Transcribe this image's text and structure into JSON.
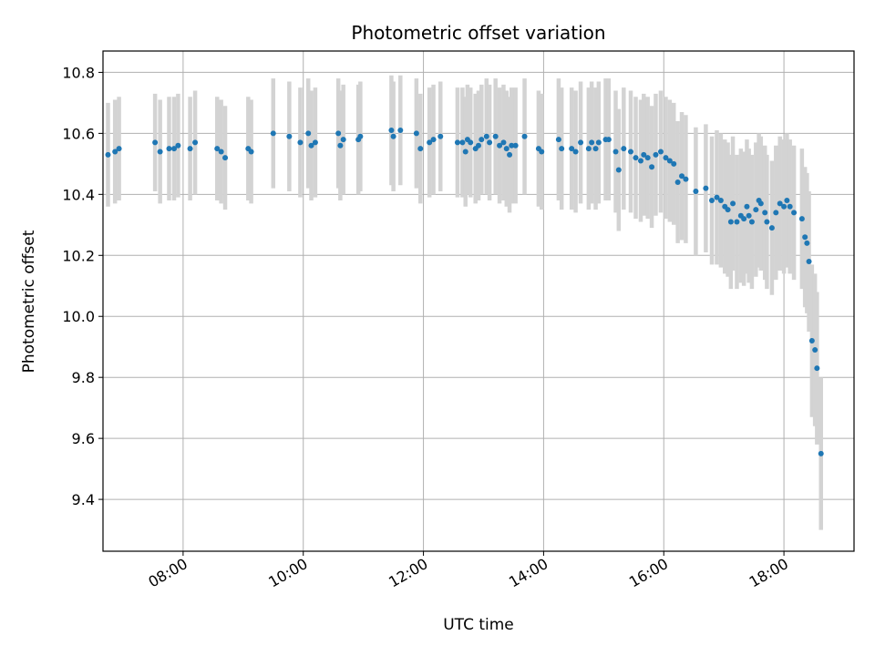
{
  "chart_data": {
    "type": "scatter",
    "title": "Photometric offset variation",
    "xlabel": "UTC time",
    "ylabel": "Photometric offset",
    "grid": true,
    "xlim": [
      "06:40",
      "19:10"
    ],
    "ylim": [
      9.23,
      10.87
    ],
    "x_ticks": [
      "08:00",
      "10:00",
      "12:00",
      "14:00",
      "16:00",
      "18:00"
    ],
    "y_ticks": [
      9.4,
      9.6,
      9.8,
      10.0,
      10.2,
      10.4,
      10.6,
      10.8
    ],
    "y_tick_labels": [
      "9.4",
      "9.6",
      "9.8",
      "10.0",
      "10.2",
      "10.4",
      "10.6",
      "10.8"
    ],
    "colors": {
      "points": "#1f77b4",
      "errorbars": "#d3d3d3",
      "grid": "#b0b0b0"
    },
    "series": [
      {
        "x": [
          "06:45",
          "06:52",
          "06:56",
          "07:32",
          "07:37",
          "07:46",
          "07:51",
          "07:55",
          "08:07",
          "08:12",
          "08:34",
          "08:38",
          "08:42",
          "09:05",
          "09:08",
          "09:30",
          "09:46",
          "09:57",
          "10:05",
          "10:08",
          "10:12",
          "10:35",
          "10:37",
          "10:40",
          "10:55",
          "10:57",
          "11:28",
          "11:30",
          "11:37",
          "11:53",
          "11:57",
          "12:06",
          "12:10",
          "12:17",
          "12:34",
          "12:39",
          "12:42",
          "12:44",
          "12:47",
          "12:52",
          "12:55",
          "12:58",
          "13:03",
          "13:06",
          "13:12",
          "13:16",
          "13:20",
          "13:23",
          "13:26",
          "13:28",
          "13:32",
          "13:41",
          "13:55",
          "13:58",
          "14:15",
          "14:18",
          "14:28",
          "14:32",
          "14:37",
          "14:45",
          "14:48",
          "14:52",
          "14:55",
          "15:02",
          "15:05",
          "15:12",
          "15:15",
          "15:20",
          "15:27",
          "15:32",
          "15:37",
          "15:40",
          "15:44",
          "15:48",
          "15:52",
          "15:57",
          "16:02",
          "16:06",
          "16:10",
          "16:14",
          "16:18",
          "16:22",
          "16:32",
          "16:42",
          "16:48",
          "16:53",
          "16:57",
          "17:01",
          "17:04",
          "17:07",
          "17:09",
          "17:13",
          "17:17",
          "17:20",
          "17:23",
          "17:25",
          "17:28",
          "17:32",
          "17:35",
          "17:37",
          "17:41",
          "17:43",
          "17:48",
          "17:52",
          "17:56",
          "18:00",
          "18:03",
          "18:06",
          "18:10",
          "18:18",
          "18:21",
          "18:23",
          "18:25",
          "18:28",
          "18:31",
          "18:33",
          "18:37"
        ],
        "y": [
          10.53,
          10.54,
          10.55,
          10.57,
          10.54,
          10.55,
          10.55,
          10.56,
          10.55,
          10.57,
          10.55,
          10.54,
          10.52,
          10.55,
          10.54,
          10.6,
          10.59,
          10.57,
          10.6,
          10.56,
          10.57,
          10.6,
          10.56,
          10.58,
          10.58,
          10.59,
          10.61,
          10.59,
          10.61,
          10.6,
          10.55,
          10.57,
          10.58,
          10.59,
          10.57,
          10.57,
          10.54,
          10.58,
          10.57,
          10.55,
          10.56,
          10.58,
          10.59,
          10.57,
          10.59,
          10.56,
          10.57,
          10.55,
          10.53,
          10.56,
          10.56,
          10.59,
          10.55,
          10.54,
          10.58,
          10.55,
          10.55,
          10.54,
          10.57,
          10.55,
          10.57,
          10.55,
          10.57,
          10.58,
          10.58,
          10.54,
          10.48,
          10.55,
          10.54,
          10.52,
          10.51,
          10.53,
          10.52,
          10.49,
          10.53,
          10.54,
          10.52,
          10.51,
          10.5,
          10.44,
          10.46,
          10.45,
          10.41,
          10.42,
          10.38,
          10.39,
          10.38,
          10.36,
          10.35,
          10.31,
          10.37,
          10.31,
          10.33,
          10.32,
          10.36,
          10.33,
          10.31,
          10.35,
          10.38,
          10.37,
          10.34,
          10.31,
          10.29,
          10.34,
          10.37,
          10.36,
          10.38,
          10.36,
          10.34,
          10.32,
          10.26,
          10.24,
          10.18,
          9.92,
          9.89,
          9.83,
          9.55
        ],
        "yerr": [
          0.17,
          0.17,
          0.17,
          0.16,
          0.17,
          0.17,
          0.17,
          0.17,
          0.17,
          0.17,
          0.17,
          0.17,
          0.17,
          0.17,
          0.17,
          0.18,
          0.18,
          0.18,
          0.18,
          0.18,
          0.18,
          0.18,
          0.18,
          0.18,
          0.18,
          0.18,
          0.18,
          0.18,
          0.18,
          0.18,
          0.18,
          0.18,
          0.18,
          0.18,
          0.18,
          0.18,
          0.18,
          0.18,
          0.18,
          0.18,
          0.18,
          0.18,
          0.19,
          0.19,
          0.19,
          0.19,
          0.19,
          0.19,
          0.19,
          0.19,
          0.19,
          0.19,
          0.19,
          0.19,
          0.2,
          0.2,
          0.2,
          0.2,
          0.2,
          0.2,
          0.2,
          0.2,
          0.2,
          0.2,
          0.2,
          0.2,
          0.2,
          0.2,
          0.2,
          0.2,
          0.2,
          0.2,
          0.2,
          0.2,
          0.2,
          0.2,
          0.2,
          0.2,
          0.2,
          0.2,
          0.21,
          0.21,
          0.21,
          0.21,
          0.21,
          0.22,
          0.22,
          0.22,
          0.22,
          0.22,
          0.22,
          0.22,
          0.22,
          0.22,
          0.22,
          0.22,
          0.22,
          0.22,
          0.22,
          0.22,
          0.22,
          0.22,
          0.22,
          0.22,
          0.22,
          0.22,
          0.22,
          0.22,
          0.22,
          0.23,
          0.23,
          0.23,
          0.23,
          0.25,
          0.25,
          0.25,
          0.25
        ]
      }
    ]
  }
}
